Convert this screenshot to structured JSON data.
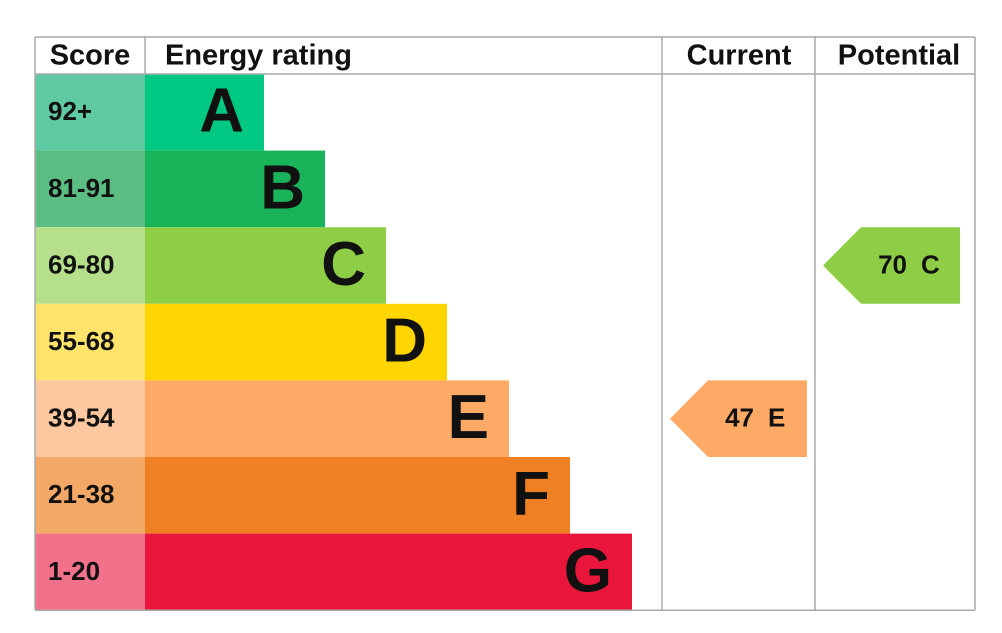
{
  "header": {
    "score": "Score",
    "rating": "Energy rating",
    "current": "Current",
    "potential": "Potential"
  },
  "rows": [
    {
      "score": "92+",
      "letter": "A"
    },
    {
      "score": "81-91",
      "letter": "B"
    },
    {
      "score": "69-80",
      "letter": "C"
    },
    {
      "score": "55-68",
      "letter": "D"
    },
    {
      "score": "39-54",
      "letter": "E"
    },
    {
      "score": "21-38",
      "letter": "F"
    },
    {
      "score": "1-20",
      "letter": "G"
    }
  ],
  "current": {
    "value": 47,
    "band": "E"
  },
  "potential": {
    "value": 70,
    "band": "C"
  }
}
